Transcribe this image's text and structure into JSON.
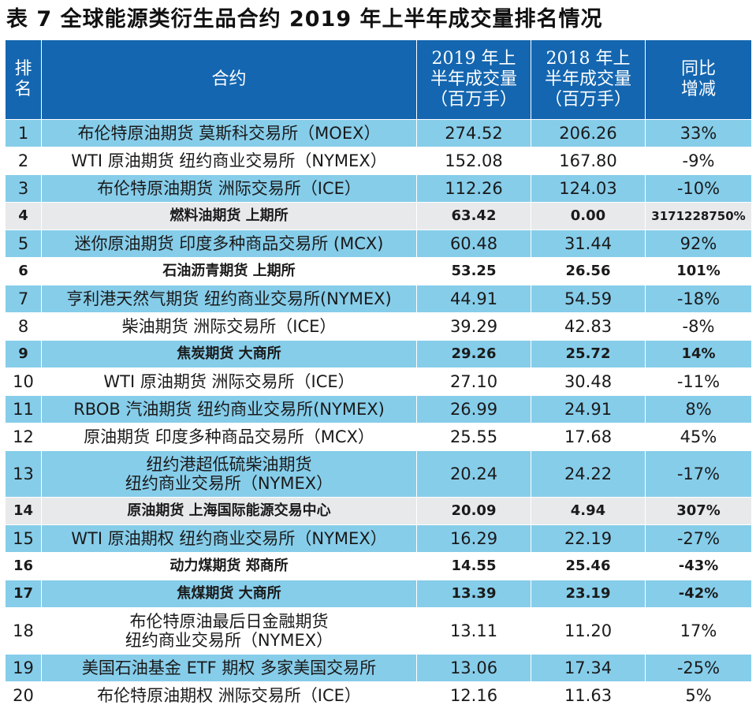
{
  "title": "表 7  全球能源类衍生品合约 2019 年上半年成交量排名情况",
  "headers": {
    "rank": [
      "排",
      "名"
    ],
    "contract": "合约",
    "vol_2019": [
      "2019 年上",
      "半年成交量",
      "（百万手）"
    ],
    "vol_2018": [
      "2018 年上",
      "半年成交量",
      "（百万手）"
    ],
    "change": [
      "同比",
      "增减"
    ]
  },
  "rows": [
    {
      "rank": "1",
      "name": [
        "布伦特原油期货  莫斯科交易所（MOEX）"
      ],
      "v2019": "274.52",
      "v2018": "206.26",
      "change": "33%",
      "style": "blue"
    },
    {
      "rank": "2",
      "name": [
        "WTI 原油期货  纽约商业交易所（NYMEX）"
      ],
      "v2019": "152.08",
      "v2018": "167.80",
      "change": "-9%",
      "style": "white"
    },
    {
      "rank": "3",
      "name": [
        "布伦特原油期货  洲际交易所（ICE）"
      ],
      "v2019": "112.26",
      "v2018": "124.03",
      "change": "-10%",
      "style": "blue"
    },
    {
      "rank": "4",
      "name": [
        "燃料油期货  上期所"
      ],
      "v2019": "63.42",
      "v2018": "0.00",
      "change": "3171228750%",
      "style": "gray bold"
    },
    {
      "rank": "5",
      "name": [
        "迷你原油期货  印度多种商品交易所 (MCX)"
      ],
      "v2019": "60.48",
      "v2018": "31.44",
      "change": "92%",
      "style": "blue"
    },
    {
      "rank": "6",
      "name": [
        "石油沥青期货  上期所"
      ],
      "v2019": "53.25",
      "v2018": "26.56",
      "change": "101%",
      "style": "white bold"
    },
    {
      "rank": "7",
      "name": [
        "亨利港天然气期货  纽约商业交易所(NYMEX)"
      ],
      "v2019": "44.91",
      "v2018": "54.59",
      "change": "-18%",
      "style": "blue"
    },
    {
      "rank": "8",
      "name": [
        "柴油期货  洲际交易所（ICE）"
      ],
      "v2019": "39.29",
      "v2018": "42.83",
      "change": "-8%",
      "style": "white"
    },
    {
      "rank": "9",
      "name": [
        "焦炭期货  大商所"
      ],
      "v2019": "29.26",
      "v2018": "25.72",
      "change": "14%",
      "style": "blue bold"
    },
    {
      "rank": "10",
      "name": [
        "WTI 原油期货  洲际交易所（ICE）"
      ],
      "v2019": "27.10",
      "v2018": "30.48",
      "change": "-11%",
      "style": "white"
    },
    {
      "rank": "11",
      "name": [
        "RBOB 汽油期货  纽约商业交易所(NYMEX)"
      ],
      "v2019": "26.99",
      "v2018": "24.91",
      "change": "8%",
      "style": "blue"
    },
    {
      "rank": "12",
      "name": [
        "原油期货  印度多种商品交易所（MCX）"
      ],
      "v2019": "25.55",
      "v2018": "17.68",
      "change": "45%",
      "style": "white"
    },
    {
      "rank": "13",
      "name": [
        "纽约港超低硫柴油期货",
        "纽约商业交易所（NYMEX）"
      ],
      "v2019": "20.24",
      "v2018": "24.22",
      "change": "-17%",
      "style": "blue tall"
    },
    {
      "rank": "14",
      "name": [
        "原油期货  上海国际能源交易中心"
      ],
      "v2019": "20.09",
      "v2018": "4.94",
      "change": "307%",
      "style": "gray bold"
    },
    {
      "rank": "15",
      "name": [
        "WTI 原油期权  纽约商业交易所（NYMEX）"
      ],
      "v2019": "16.29",
      "v2018": "22.19",
      "change": "-27%",
      "style": "blue"
    },
    {
      "rank": "16",
      "name": [
        "动力煤期货  郑商所"
      ],
      "v2019": "14.55",
      "v2018": "25.46",
      "change": "-43%",
      "style": "white bold"
    },
    {
      "rank": "17",
      "name": [
        "焦煤期货  大商所"
      ],
      "v2019": "13.39",
      "v2018": "23.19",
      "change": "-42%",
      "style": "blue bold"
    },
    {
      "rank": "18",
      "name": [
        "布伦特原油最后日金融期货",
        "纽约商业交易所（NYMEX）"
      ],
      "v2019": "13.11",
      "v2018": "11.20",
      "change": "17%",
      "style": "white tall"
    },
    {
      "rank": "19",
      "name": [
        "美国石油基金 ETF 期权  多家美国交易所"
      ],
      "v2019": "13.06",
      "v2018": "17.34",
      "change": "-25%",
      "style": "blue"
    },
    {
      "rank": "20",
      "name": [
        "布伦特原油期权  洲际交易所（ICE）"
      ],
      "v2019": "12.16",
      "v2018": "11.63",
      "change": "5%",
      "style": "white"
    }
  ]
}
